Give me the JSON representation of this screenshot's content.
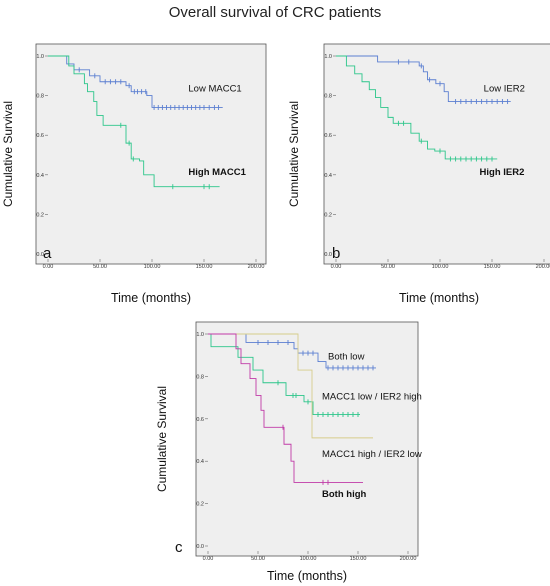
{
  "figure": {
    "title": "Overall survival of CRC patients"
  },
  "chart_data": [
    {
      "type": "line",
      "panel": "a",
      "ylabel": "Cumulative Survival",
      "xlabel": "Time (months)",
      "xlim": [
        0,
        200
      ],
      "ylim": [
        0,
        1
      ],
      "xticks": [
        "0.00",
        "50.00",
        "100.00",
        "150.00",
        "200.00"
      ],
      "yticks": [
        "0.0",
        "0.2",
        "0.4",
        "0.6",
        "0.8",
        "1.0"
      ],
      "series": [
        {
          "name": "Low MACC1",
          "color": "#5b7fd1",
          "steps": [
            [
              0,
              1.0
            ],
            [
              18,
              0.96
            ],
            [
              25,
              0.93
            ],
            [
              40,
              0.9
            ],
            [
              50,
              0.87
            ],
            [
              75,
              0.85
            ],
            [
              80,
              0.82
            ],
            [
              95,
              0.8
            ],
            [
              100,
              0.74
            ],
            [
              168,
              0.74
            ]
          ],
          "censors": [
            [
              30,
              0.93
            ],
            [
              45,
              0.9
            ],
            [
              55,
              0.87
            ],
            [
              60,
              0.87
            ],
            [
              65,
              0.87
            ],
            [
              70,
              0.87
            ],
            [
              78,
              0.85
            ],
            [
              83,
              0.82
            ],
            [
              86,
              0.82
            ],
            [
              90,
              0.82
            ],
            [
              94,
              0.82
            ],
            [
              102,
              0.74
            ],
            [
              106,
              0.74
            ],
            [
              110,
              0.74
            ],
            [
              114,
              0.74
            ],
            [
              118,
              0.74
            ],
            [
              122,
              0.74
            ],
            [
              126,
              0.74
            ],
            [
              130,
              0.74
            ],
            [
              134,
              0.74
            ],
            [
              138,
              0.74
            ],
            [
              142,
              0.74
            ],
            [
              146,
              0.74
            ],
            [
              150,
              0.74
            ],
            [
              155,
              0.74
            ],
            [
              160,
              0.74
            ],
            [
              164,
              0.74
            ]
          ]
        },
        {
          "name": "High MACC1",
          "color": "#2cc68a",
          "steps": [
            [
              0,
              1.0
            ],
            [
              20,
              0.95
            ],
            [
              25,
              0.91
            ],
            [
              35,
              0.86
            ],
            [
              38,
              0.82
            ],
            [
              44,
              0.77
            ],
            [
              47,
              0.7
            ],
            [
              53,
              0.65
            ],
            [
              75,
              0.56
            ],
            [
              80,
              0.48
            ],
            [
              88,
              0.47
            ],
            [
              92,
              0.4
            ],
            [
              102,
              0.34
            ],
            [
              165,
              0.34
            ]
          ],
          "censors": [
            [
              70,
              0.65
            ],
            [
              78,
              0.56
            ],
            [
              82,
              0.48
            ],
            [
              120,
              0.34
            ],
            [
              150,
              0.34
            ],
            [
              155,
              0.34
            ]
          ]
        }
      ],
      "labels": [
        {
          "text": "Low MACC1",
          "bold": false,
          "x": 135,
          "y": 0.82
        },
        {
          "text": "High MACC1",
          "bold": true,
          "x": 135,
          "y": 0.4
        }
      ]
    },
    {
      "type": "line",
      "panel": "b",
      "ylabel": "Cumulative Survival",
      "xlabel": "Time (months)",
      "xlim": [
        0,
        200
      ],
      "ylim": [
        0,
        1
      ],
      "xticks": [
        "0.00",
        "50.00",
        "100.00",
        "150.00",
        "200.00"
      ],
      "yticks": [
        "0.0",
        "0.2",
        "0.4",
        "0.6",
        "0.8",
        "1.0"
      ],
      "series": [
        {
          "name": "Low IER2",
          "color": "#5b7fd1",
          "steps": [
            [
              0,
              1.0
            ],
            [
              40,
              0.97
            ],
            [
              80,
              0.95
            ],
            [
              84,
              0.92
            ],
            [
              88,
              0.88
            ],
            [
              96,
              0.86
            ],
            [
              104,
              0.82
            ],
            [
              108,
              0.77
            ],
            [
              168,
              0.77
            ]
          ],
          "censors": [
            [
              60,
              0.97
            ],
            [
              70,
              0.97
            ],
            [
              82,
              0.95
            ],
            [
              90,
              0.88
            ],
            [
              100,
              0.86
            ],
            [
              115,
              0.77
            ],
            [
              120,
              0.77
            ],
            [
              125,
              0.77
            ],
            [
              130,
              0.77
            ],
            [
              135,
              0.77
            ],
            [
              140,
              0.77
            ],
            [
              145,
              0.77
            ],
            [
              150,
              0.77
            ],
            [
              155,
              0.77
            ],
            [
              160,
              0.77
            ],
            [
              165,
              0.77
            ]
          ]
        },
        {
          "name": "High IER2",
          "color": "#2cc68a",
          "steps": [
            [
              0,
              1.0
            ],
            [
              10,
              0.95
            ],
            [
              18,
              0.91
            ],
            [
              25,
              0.87
            ],
            [
              32,
              0.83
            ],
            [
              38,
              0.79
            ],
            [
              43,
              0.74
            ],
            [
              50,
              0.69
            ],
            [
              55,
              0.66
            ],
            [
              72,
              0.61
            ],
            [
              80,
              0.57
            ],
            [
              88,
              0.53
            ],
            [
              95,
              0.52
            ],
            [
              105,
              0.48
            ],
            [
              155,
              0.48
            ]
          ],
          "censors": [
            [
              60,
              0.66
            ],
            [
              65,
              0.66
            ],
            [
              82,
              0.57
            ],
            [
              100,
              0.52
            ],
            [
              110,
              0.48
            ],
            [
              115,
              0.48
            ],
            [
              120,
              0.48
            ],
            [
              125,
              0.48
            ],
            [
              130,
              0.48
            ],
            [
              135,
              0.48
            ],
            [
              140,
              0.48
            ],
            [
              145,
              0.48
            ],
            [
              150,
              0.48
            ]
          ]
        }
      ],
      "labels": [
        {
          "text": "Low IER2",
          "bold": false,
          "x": 142,
          "y": 0.82
        },
        {
          "text": "High IER2",
          "bold": true,
          "x": 138,
          "y": 0.4
        }
      ]
    },
    {
      "type": "line",
      "panel": "c",
      "ylabel": "Cumulative Survival",
      "xlabel": "Time (months)",
      "xlim": [
        0,
        200
      ],
      "ylim": [
        0,
        1
      ],
      "xticks": [
        "0.00",
        "50.00",
        "100.00",
        "150.00",
        "200.00"
      ],
      "yticks": [
        "0.0",
        "0.2",
        "0.4",
        "0.6",
        "0.8",
        "1.0"
      ],
      "series": [
        {
          "name": "Both low",
          "color": "#5b7fd1",
          "steps": [
            [
              0,
              1.0
            ],
            [
              38,
              0.96
            ],
            [
              86,
              0.93
            ],
            [
              90,
              0.91
            ],
            [
              110,
              0.87
            ],
            [
              118,
              0.84
            ],
            [
              168,
              0.84
            ]
          ],
          "censors": [
            [
              50,
              0.96
            ],
            [
              60,
              0.96
            ],
            [
              70,
              0.96
            ],
            [
              80,
              0.96
            ],
            [
              95,
              0.91
            ],
            [
              100,
              0.91
            ],
            [
              105,
              0.91
            ],
            [
              120,
              0.84
            ],
            [
              125,
              0.84
            ],
            [
              130,
              0.84
            ],
            [
              135,
              0.84
            ],
            [
              140,
              0.84
            ],
            [
              145,
              0.84
            ],
            [
              150,
              0.84
            ],
            [
              155,
              0.84
            ],
            [
              160,
              0.84
            ],
            [
              165,
              0.84
            ]
          ]
        },
        {
          "name": "MACC1 low / IER2 high",
          "color": "#2cc68a",
          "steps": [
            [
              0,
              1.0
            ],
            [
              3,
              0.94
            ],
            [
              30,
              0.89
            ],
            [
              45,
              0.83
            ],
            [
              55,
              0.77
            ],
            [
              78,
              0.71
            ],
            [
              96,
              0.68
            ],
            [
              105,
              0.62
            ],
            [
              152,
              0.62
            ]
          ],
          "censors": [
            [
              70,
              0.77
            ],
            [
              85,
              0.71
            ],
            [
              88,
              0.71
            ],
            [
              100,
              0.68
            ],
            [
              110,
              0.62
            ],
            [
              115,
              0.62
            ],
            [
              120,
              0.62
            ],
            [
              125,
              0.62
            ],
            [
              130,
              0.62
            ],
            [
              135,
              0.62
            ],
            [
              140,
              0.62
            ],
            [
              145,
              0.62
            ],
            [
              150,
              0.62
            ]
          ]
        },
        {
          "name": "MACC1 high / IER2 low",
          "color": "#d6cc8a",
          "steps": [
            [
              0,
              1.0
            ],
            [
              90,
              0.83
            ],
            [
              104,
              0.51
            ],
            [
              165,
              0.51
            ]
          ],
          "censors": []
        },
        {
          "name": "Both high",
          "color": "#c03aa7",
          "steps": [
            [
              0,
              1.0
            ],
            [
              28,
              0.93
            ],
            [
              33,
              0.86
            ],
            [
              42,
              0.79
            ],
            [
              48,
              0.71
            ],
            [
              53,
              0.64
            ],
            [
              56,
              0.56
            ],
            [
              76,
              0.48
            ],
            [
              83,
              0.4
            ],
            [
              86,
              0.3
            ],
            [
              155,
              0.3
            ]
          ],
          "censors": [
            [
              75,
              0.56
            ],
            [
              115,
              0.3
            ],
            [
              120,
              0.3
            ]
          ]
        }
      ],
      "labels": [
        {
          "text": "Both low",
          "bold": false,
          "x": 120,
          "y": 0.88
        },
        {
          "text": "MACC1 low / IER2 high",
          "bold": false,
          "x": 114,
          "y": 0.69
        },
        {
          "text": "MACC1 high / IER2 low",
          "bold": false,
          "x": 114,
          "y": 0.42
        },
        {
          "text": "Both high",
          "bold": true,
          "x": 114,
          "y": 0.23
        }
      ]
    }
  ]
}
